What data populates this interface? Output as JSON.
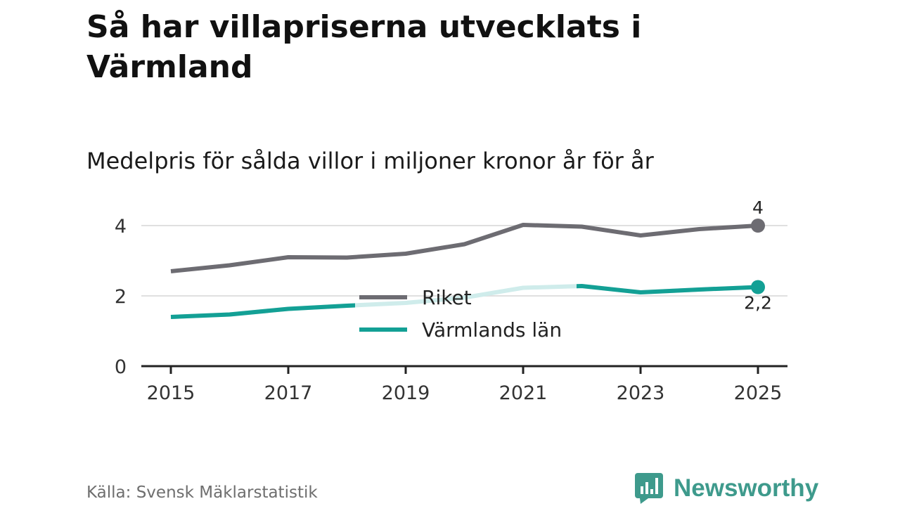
{
  "title": "Så har villapriserna utvecklats i Värmland",
  "subtitle": "Medelpris för sålda villor i miljoner kronor år för år",
  "source": "Källa: Svensk Mäklarstatistik",
  "brand": {
    "name": "Newsworthy",
    "icon": "newsworthy-logo-icon"
  },
  "colors": {
    "riket": "#6d6c72",
    "varmland": "#13a095",
    "varmland_faded": "#cfeceb",
    "grid": "#e0e0e0",
    "axis": "#222222",
    "brand": "#3e9a8c"
  },
  "chart_data": {
    "type": "line",
    "title": "Så har villapriserna utvecklats i Värmland",
    "subtitle": "Medelpris för sålda villor i miljoner kronor år för år",
    "xlabel": "",
    "ylabel": "",
    "x": [
      2015,
      2016,
      2017,
      2018,
      2019,
      2020,
      2021,
      2022,
      2023,
      2024,
      2025
    ],
    "x_ticks": [
      "2015",
      "2017",
      "2019",
      "2021",
      "2023",
      "2025"
    ],
    "y_ticks": [
      "0",
      "2",
      "4"
    ],
    "ylim": [
      0,
      4.5
    ],
    "grid": true,
    "legend_position": "center",
    "series": [
      {
        "name": "Riket",
        "values": [
          2.7,
          2.87,
          3.1,
          3.09,
          3.2,
          3.47,
          4.02,
          3.97,
          3.72,
          3.9,
          4.0
        ],
        "end_label": "4"
      },
      {
        "name": "Värmlands län",
        "values": [
          1.4,
          1.47,
          1.63,
          1.72,
          1.8,
          1.95,
          2.23,
          2.28,
          2.1,
          2.18,
          2.25
        ],
        "end_label": "2,2"
      }
    ]
  }
}
